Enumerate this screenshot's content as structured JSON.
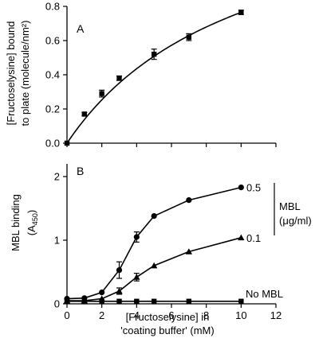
{
  "chart_data": [
    {
      "type": "line",
      "panel_label": "A",
      "ylabel_lines": [
        "[Fructoselysine] bound",
        "to plate (molecule/nm²)"
      ],
      "xlim": [
        0,
        12
      ],
      "ylim": [
        0,
        0.8
      ],
      "y_ticks": [
        "0.0",
        "0.2",
        "0.4",
        "0.6",
        "0.8"
      ],
      "x_ticks": [],
      "series": [
        {
          "marker": "square",
          "line": "fitted-curve",
          "x": [
            0,
            1,
            2,
            3,
            5,
            7,
            10
          ],
          "y": [
            0.0,
            0.17,
            0.29,
            0.38,
            0.52,
            0.62,
            0.765
          ],
          "err": [
            0.0,
            0.01,
            0.02,
            0.013,
            0.03,
            0.02,
            0.013
          ]
        }
      ]
    },
    {
      "type": "line",
      "panel_label": "B",
      "ylabel_lines": [
        "MBL binding",
        "(A450)"
      ],
      "xlabel_lines": [
        "[Fructoselysine] in",
        "'coating buffer' (mM)"
      ],
      "xlim": [
        0,
        12
      ],
      "ylim": [
        0,
        2.2
      ],
      "y_ticks": [
        "0",
        "1",
        "2"
      ],
      "x_ticks": [
        "0",
        "2",
        "4",
        "6",
        "8",
        "10",
        "12"
      ],
      "legend_title_lines": [
        "MBL",
        "(μg/ml)"
      ],
      "series": [
        {
          "label": "0.5",
          "marker": "circle",
          "x": [
            0,
            1,
            2,
            3,
            4,
            5,
            7,
            10
          ],
          "y": [
            0.08,
            0.09,
            0.18,
            0.53,
            1.05,
            1.38,
            1.63,
            1.83
          ],
          "err": [
            0.0,
            0.0,
            0.0,
            0.13,
            0.08,
            0.0,
            0.0,
            0.0
          ]
        },
        {
          "label": "0.1",
          "marker": "triangle",
          "x": [
            0,
            1,
            2,
            3,
            4,
            5,
            7,
            10
          ],
          "y": [
            0.05,
            0.05,
            0.08,
            0.2,
            0.42,
            0.6,
            0.82,
            1.04
          ],
          "err": [
            0.0,
            0.0,
            0.0,
            0.05,
            0.06,
            0.0,
            0.0,
            0.0
          ]
        },
        {
          "label": "No MBL",
          "marker": "square",
          "x": [
            0,
            1,
            2,
            3,
            4,
            5,
            7,
            10
          ],
          "y": [
            0.04,
            0.04,
            0.04,
            0.04,
            0.04,
            0.04,
            0.04,
            0.04
          ],
          "err": [
            0,
            0,
            0,
            0,
            0,
            0,
            0,
            0
          ]
        }
      ]
    }
  ]
}
